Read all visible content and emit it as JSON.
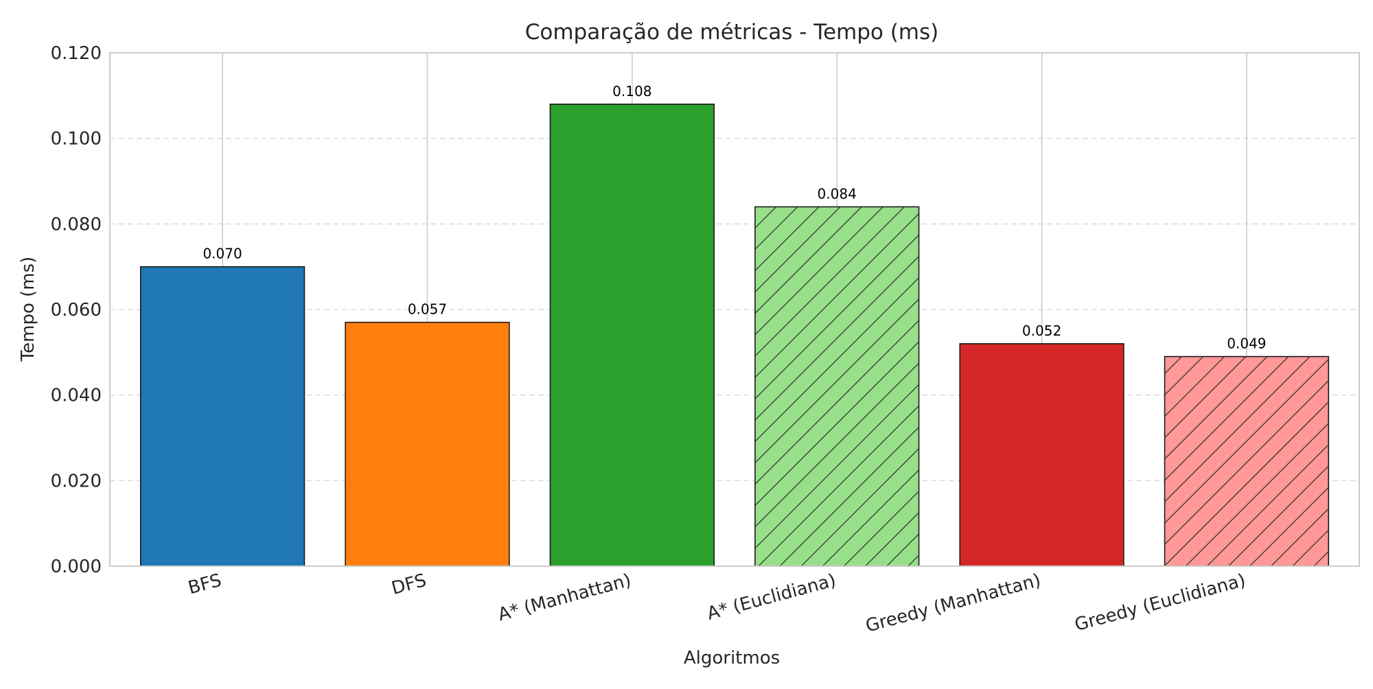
{
  "chart_data": {
    "type": "bar",
    "title": "Comparação de métricas - Tempo (ms)",
    "xlabel": "Algoritmos",
    "ylabel": "Tempo (ms)",
    "ylim": [
      0,
      0.12
    ],
    "yticks": [
      "0.000",
      "0.020",
      "0.040",
      "0.060",
      "0.080",
      "0.100",
      "0.120"
    ],
    "categories": [
      "BFS",
      "DFS",
      "A* (Manhattan)",
      "A* (Euclidiana)",
      "Greedy (Manhattan)",
      "Greedy (Euclidiana)"
    ],
    "values": [
      0.07,
      0.057,
      0.108,
      0.084,
      0.052,
      0.049
    ],
    "value_labels": [
      "0.070",
      "0.057",
      "0.108",
      "0.084",
      "0.052",
      "0.049"
    ],
    "colors": [
      "#1f77b4",
      "#ff7f0e",
      "#2ca02c",
      "#98df8a",
      "#d62728",
      "#ff9896"
    ],
    "hatched": [
      false,
      false,
      false,
      true,
      false,
      true
    ],
    "grid": true,
    "legend": "none"
  }
}
